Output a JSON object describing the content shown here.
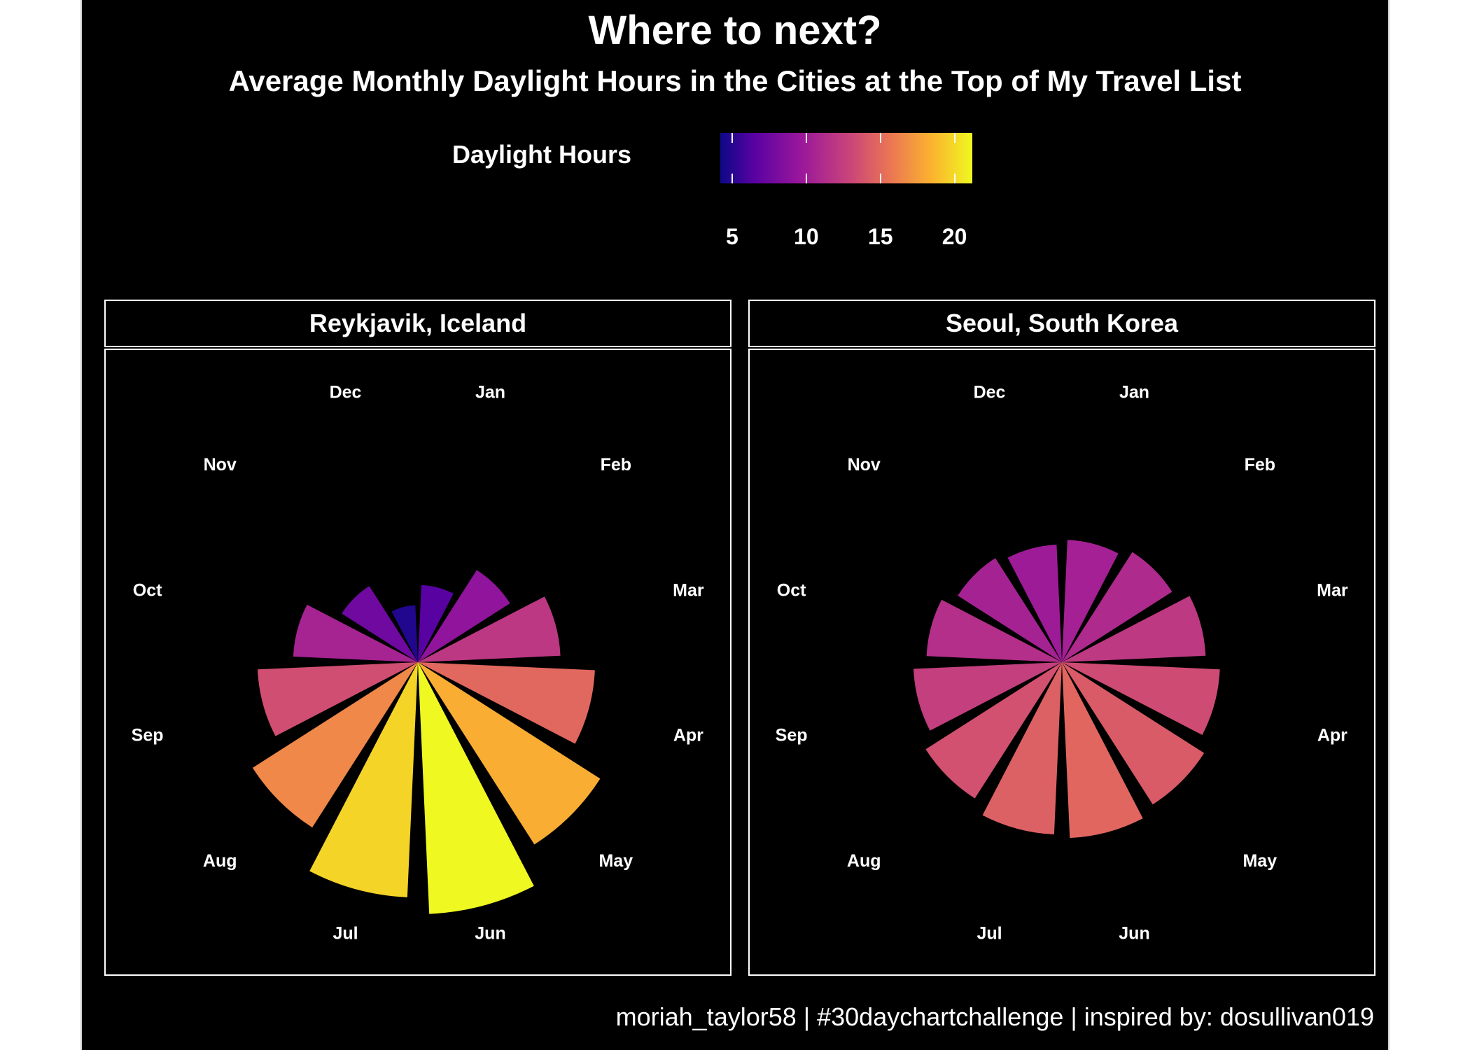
{
  "title": "Where to next?",
  "subtitle": "Average Monthly Daylight Hours in the Cities at the Top of My Travel List",
  "caption": "moriah_taylor58 | #30daychartchallenge | inspired by: dosullivan019",
  "legend": {
    "title": "Daylight Hours",
    "ticks": [
      "5",
      "10",
      "15",
      "20"
    ],
    "range": [
      4.2,
      21.2
    ]
  },
  "chart_data": {
    "type": "polar-bar",
    "categories": [
      "Jan",
      "Feb",
      "Mar",
      "Apr",
      "May",
      "Jun",
      "Jul",
      "Aug",
      "Sep",
      "Oct",
      "Nov",
      "Dec"
    ],
    "radial_range": [
      0,
      21.2
    ],
    "color_scale": "plasma",
    "panels": [
      {
        "name": "Reykjavik, Iceland",
        "values": [
          6.5,
          9.2,
          12.0,
          14.9,
          18.2,
          21.2,
          19.8,
          16.5,
          13.5,
          10.5,
          7.6,
          4.8
        ]
      },
      {
        "name": "Seoul, South Korea",
        "values": [
          10.3,
          11.0,
          12.1,
          13.3,
          14.2,
          14.8,
          14.5,
          13.6,
          12.5,
          11.4,
          10.4,
          9.9
        ]
      }
    ]
  }
}
